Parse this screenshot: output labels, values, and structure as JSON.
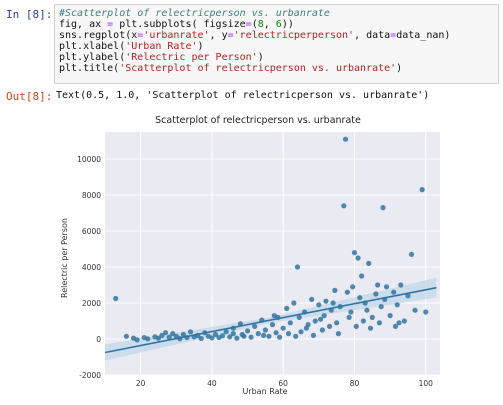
{
  "cell_in": {
    "prompt": "In [8]:",
    "code_lines": [
      [
        {
          "t": "comment",
          "v": "#Scatterplot of relectricperson vs. urbanrate"
        }
      ],
      [
        {
          "t": "plain",
          "v": "fig, ax "
        },
        {
          "t": "op",
          "v": "="
        },
        {
          "t": "plain",
          "v": " plt.subplots( figsize"
        },
        {
          "t": "op",
          "v": "="
        },
        {
          "t": "plain",
          "v": "("
        },
        {
          "t": "num",
          "v": "8"
        },
        {
          "t": "plain",
          "v": ", "
        },
        {
          "t": "num",
          "v": "6"
        },
        {
          "t": "plain",
          "v": "))"
        }
      ],
      [
        {
          "t": "plain",
          "v": "sns.regplot(x"
        },
        {
          "t": "op",
          "v": "="
        },
        {
          "t": "str",
          "v": "'urbanrate'"
        },
        {
          "t": "plain",
          "v": ", y"
        },
        {
          "t": "op",
          "v": "="
        },
        {
          "t": "str",
          "v": "'relectricperperson'"
        },
        {
          "t": "plain",
          "v": ", data"
        },
        {
          "t": "op",
          "v": "="
        },
        {
          "t": "plain",
          "v": "data_nan)"
        }
      ],
      [
        {
          "t": "plain",
          "v": "plt.xlabel("
        },
        {
          "t": "str",
          "v": "'Urban Rate'"
        },
        {
          "t": "plain",
          "v": ")"
        }
      ],
      [
        {
          "t": "plain",
          "v": "plt.ylabel("
        },
        {
          "t": "str",
          "v": "'Relectric per Person'"
        },
        {
          "t": "plain",
          "v": ")"
        }
      ],
      [
        {
          "t": "plain",
          "v": "plt.title("
        },
        {
          "t": "str",
          "v": "'Scatterplot of relectricperson vs. urbanrate'"
        },
        {
          "t": "plain",
          "v": ")"
        }
      ]
    ]
  },
  "cell_out": {
    "prompt": "Out[8]:",
    "text": "Text(0.5, 1.0, 'Scatterplot of relectricperson vs. urbanrate')"
  },
  "colors": {
    "point": "#3274a1",
    "band": "#c6d9ea",
    "axes_bg": "#eaeaf2",
    "grid": "#ffffff"
  },
  "chart_data": {
    "type": "scatter",
    "title": "Scatterplot of relectricperson vs. urbanrate",
    "xlabel": "Urban Rate",
    "ylabel": "Relectric per Person",
    "xlim": [
      10,
      104
    ],
    "ylim": [
      -2000,
      11500
    ],
    "xticks": [
      20,
      40,
      60,
      80,
      100
    ],
    "yticks": [
      -2000,
      0,
      2000,
      4000,
      6000,
      8000,
      10000
    ],
    "grid": true,
    "regression": {
      "x": [
        10,
        103
      ],
      "y": [
        -750,
        2850
      ],
      "band_halfwidth": [
        450,
        550
      ]
    },
    "points": [
      {
        "x": 13,
        "y": 2250
      },
      {
        "x": 16,
        "y": 150
      },
      {
        "x": 18,
        "y": 50
      },
      {
        "x": 19,
        "y": -50
      },
      {
        "x": 21,
        "y": 80
      },
      {
        "x": 22,
        "y": 10
      },
      {
        "x": 24,
        "y": 120
      },
      {
        "x": 25,
        "y": 50
      },
      {
        "x": 26,
        "y": 200
      },
      {
        "x": 27,
        "y": 350
      },
      {
        "x": 28,
        "y": 100
      },
      {
        "x": 29,
        "y": 300
      },
      {
        "x": 30,
        "y": 150
      },
      {
        "x": 31,
        "y": 20
      },
      {
        "x": 32,
        "y": 250
      },
      {
        "x": 33,
        "y": 80
      },
      {
        "x": 34,
        "y": 400
      },
      {
        "x": 35,
        "y": 120
      },
      {
        "x": 36,
        "y": 200
      },
      {
        "x": 37,
        "y": 30
      },
      {
        "x": 38,
        "y": 350
      },
      {
        "x": 39,
        "y": 150
      },
      {
        "x": 40,
        "y": 60
      },
      {
        "x": 41,
        "y": 250
      },
      {
        "x": 42,
        "y": 80
      },
      {
        "x": 43,
        "y": 180
      },
      {
        "x": 44,
        "y": 400
      },
      {
        "x": 45,
        "y": 120
      },
      {
        "x": 46,
        "y": 300
      },
      {
        "x": 47,
        "y": 50
      },
      {
        "x": 48,
        "y": 850
      },
      {
        "x": 48.5,
        "y": 250
      },
      {
        "x": 49,
        "y": 150
      },
      {
        "x": 50,
        "y": 450
      },
      {
        "x": 51,
        "y": 100
      },
      {
        "x": 52,
        "y": 700
      },
      {
        "x": 53,
        "y": 300
      },
      {
        "x": 54,
        "y": 1050
      },
      {
        "x": 54.5,
        "y": 200
      },
      {
        "x": 55,
        "y": 500
      },
      {
        "x": 56,
        "y": 150
      },
      {
        "x": 57,
        "y": 800
      },
      {
        "x": 58,
        "y": 350
      },
      {
        "x": 58.5,
        "y": 1200
      },
      {
        "x": 59,
        "y": 100
      },
      {
        "x": 60,
        "y": 600
      },
      {
        "x": 61,
        "y": 1700
      },
      {
        "x": 61.5,
        "y": 300
      },
      {
        "x": 62,
        "y": 900
      },
      {
        "x": 63,
        "y": 2000
      },
      {
        "x": 63.5,
        "y": 150
      },
      {
        "x": 64,
        "y": 4000
      },
      {
        "x": 64.5,
        "y": 1200
      },
      {
        "x": 65,
        "y": 400
      },
      {
        "x": 66,
        "y": 1500
      },
      {
        "x": 67,
        "y": 800
      },
      {
        "x": 68,
        "y": 2200
      },
      {
        "x": 68.5,
        "y": 200
      },
      {
        "x": 69,
        "y": 1000
      },
      {
        "x": 70,
        "y": 1900
      },
      {
        "x": 71,
        "y": 500
      },
      {
        "x": 71.5,
        "y": 1300
      },
      {
        "x": 72,
        "y": 2100
      },
      {
        "x": 73,
        "y": 700
      },
      {
        "x": 73.5,
        "y": 1600
      },
      {
        "x": 74,
        "y": 2000
      },
      {
        "x": 75,
        "y": 900
      },
      {
        "x": 75.5,
        "y": 300
      },
      {
        "x": 76,
        "y": 1800
      },
      {
        "x": 77,
        "y": 7400
      },
      {
        "x": 77.5,
        "y": 11100
      },
      {
        "x": 78,
        "y": 2600
      },
      {
        "x": 78.5,
        "y": 1200
      },
      {
        "x": 79,
        "y": 1500
      },
      {
        "x": 80,
        "y": 4800
      },
      {
        "x": 80.5,
        "y": 700
      },
      {
        "x": 81,
        "y": 4500
      },
      {
        "x": 81.5,
        "y": 2300
      },
      {
        "x": 82,
        "y": 3500
      },
      {
        "x": 82.5,
        "y": 1000
      },
      {
        "x": 83,
        "y": 2000
      },
      {
        "x": 84,
        "y": 4200
      },
      {
        "x": 84.5,
        "y": 600
      },
      {
        "x": 85,
        "y": 1200
      },
      {
        "x": 86,
        "y": 2500
      },
      {
        "x": 86.5,
        "y": 3000
      },
      {
        "x": 87,
        "y": 900
      },
      {
        "x": 88,
        "y": 7300
      },
      {
        "x": 88.5,
        "y": 2200
      },
      {
        "x": 89,
        "y": 2900
      },
      {
        "x": 90,
        "y": 1300
      },
      {
        "x": 91,
        "y": 2600
      },
      {
        "x": 91.5,
        "y": 700
      },
      {
        "x": 92,
        "y": 1900
      },
      {
        "x": 93,
        "y": 3000
      },
      {
        "x": 94,
        "y": 1000
      },
      {
        "x": 95,
        "y": 2400
      },
      {
        "x": 96,
        "y": 4700
      },
      {
        "x": 97,
        "y": 1600
      },
      {
        "x": 99,
        "y": 8300
      },
      {
        "x": 100,
        "y": 1500
      },
      {
        "x": 46,
        "y": 600
      },
      {
        "x": 57.5,
        "y": 1300
      },
      {
        "x": 66.5,
        "y": 600
      },
      {
        "x": 70.5,
        "y": 1100
      },
      {
        "x": 74.5,
        "y": 2700
      },
      {
        "x": 79.5,
        "y": 2900
      },
      {
        "x": 83.5,
        "y": 1600
      },
      {
        "x": 87.5,
        "y": 1800
      },
      {
        "x": 92.5,
        "y": 900
      }
    ]
  }
}
